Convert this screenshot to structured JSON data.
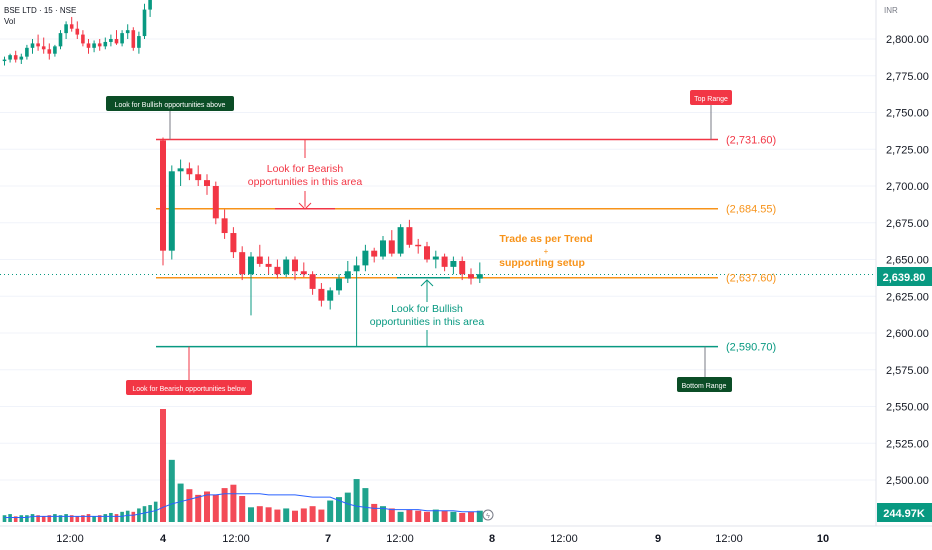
{
  "header": {
    "symbol": "BSE LTD · 15 · NSE",
    "vol_label": "Vol"
  },
  "axis": {
    "currency": "INR"
  },
  "chart_data": {
    "type": "candlestick",
    "y_ticks": [
      2800,
      2775,
      2750,
      2725,
      2700,
      2675,
      2650,
      2625,
      2600,
      2575,
      2550,
      2525,
      2500
    ],
    "y_tick_labels": [
      "2,800.00",
      "2,775.00",
      "2,750.00",
      "2,725.00",
      "2,700.00",
      "2,675.00",
      "2,650.00",
      "2,625.00",
      "2,600.00",
      "2,575.00",
      "2,550.00",
      "2,525.00",
      "2,500.00"
    ],
    "x_tick_labels": [
      "12:00",
      "4",
      "12:00",
      "7",
      "12:00",
      "8",
      "12:00",
      "9",
      "12:00",
      "10"
    ],
    "last_price": "2,639.80",
    "last_volume": "244.97K",
    "levels": [
      {
        "value": 2731.6,
        "label": "(2,731.60)",
        "color": "#f23645"
      },
      {
        "value": 2684.55,
        "label": "(2,684.55)",
        "color": "#f7931a"
      },
      {
        "value": 2637.6,
        "label": "(2,637.60)",
        "color": "#f7931a"
      },
      {
        "value": 2590.7,
        "label": "(2,590.70)",
        "color": "#089981"
      }
    ],
    "annotations": {
      "bull_above": "Look for Bullish opportunities above",
      "bear_below": "Look for Bearish opportunities below",
      "top_range": "Top Range",
      "bottom_range": "Bottom Range",
      "bear_area_1": "Look for Bearish",
      "bear_area_2": "opportunities in this area",
      "bull_area_1": "Look for Bullish",
      "bull_area_2": "opportunities in this area",
      "trend_1": "Trade as per Trend",
      "trend_2": "+",
      "trend_3": "supporting setup"
    },
    "candles": [
      [
        2785,
        2788,
        2782,
        2786
      ],
      [
        2786,
        2790,
        2784,
        2789
      ],
      [
        2789,
        2792,
        2784,
        2786
      ],
      [
        2786,
        2790,
        2783,
        2788
      ],
      [
        2788,
        2796,
        2786,
        2794
      ],
      [
        2794,
        2800,
        2790,
        2797
      ],
      [
        2797,
        2803,
        2792,
        2795
      ],
      [
        2795,
        2801,
        2790,
        2793
      ],
      [
        2793,
        2797,
        2786,
        2790
      ],
      [
        2790,
        2796,
        2788,
        2795
      ],
      [
        2795,
        2806,
        2793,
        2804
      ],
      [
        2804,
        2812,
        2800,
        2810
      ],
      [
        2810,
        2815,
        2805,
        2807
      ],
      [
        2807,
        2812,
        2800,
        2803
      ],
      [
        2803,
        2806,
        2795,
        2797
      ],
      [
        2797,
        2800,
        2790,
        2794
      ],
      [
        2794,
        2799,
        2791,
        2797
      ],
      [
        2797,
        2800,
        2792,
        2795
      ],
      [
        2795,
        2801,
        2793,
        2798
      ],
      [
        2798,
        2803,
        2795,
        2800
      ],
      [
        2800,
        2806,
        2796,
        2797
      ],
      [
        2797,
        2806,
        2795,
        2804
      ],
      [
        2804,
        2810,
        2800,
        2806
      ],
      [
        2806,
        2808,
        2792,
        2794
      ],
      [
        2794,
        2805,
        2790,
        2802
      ],
      [
        2802,
        2824,
        2800,
        2820
      ],
      [
        2820,
        2840,
        2815,
        2836
      ],
      [
        2836,
        2852,
        2830,
        2848
      ],
      [
        2731,
        2733,
        2646,
        2656
      ],
      [
        2656,
        2714,
        2650,
        2710
      ],
      [
        2710,
        2718,
        2700,
        2712
      ],
      [
        2712,
        2716,
        2704,
        2708
      ],
      [
        2708,
        2714,
        2700,
        2704
      ],
      [
        2704,
        2708,
        2694,
        2700
      ],
      [
        2700,
        2703,
        2674,
        2678
      ],
      [
        2678,
        2684,
        2664,
        2668
      ],
      [
        2668,
        2672,
        2651,
        2655
      ],
      [
        2655,
        2659,
        2636,
        2640
      ],
      [
        2640,
        2655,
        2612,
        2652
      ],
      [
        2652,
        2660,
        2645,
        2647
      ],
      [
        2647,
        2652,
        2640,
        2645
      ],
      [
        2645,
        2650,
        2637,
        2640
      ],
      [
        2640,
        2652,
        2638,
        2650
      ],
      [
        2650,
        2652,
        2636,
        2642
      ],
      [
        2642,
        2648,
        2638,
        2640
      ],
      [
        2640,
        2642,
        2626,
        2630
      ],
      [
        2630,
        2634,
        2618,
        2622
      ],
      [
        2622,
        2631,
        2616,
        2629
      ],
      [
        2629,
        2640,
        2626,
        2637
      ],
      [
        2637,
        2649,
        2634,
        2642
      ],
      [
        2642,
        2652,
        2591,
        2646
      ],
      [
        2646,
        2660,
        2642,
        2656
      ],
      [
        2656,
        2658,
        2648,
        2652
      ],
      [
        2652,
        2666,
        2650,
        2663
      ],
      [
        2663,
        2670,
        2652,
        2654
      ],
      [
        2654,
        2674,
        2652,
        2672
      ],
      [
        2672,
        2677,
        2658,
        2660
      ],
      [
        2660,
        2664,
        2654,
        2659
      ],
      [
        2659,
        2662,
        2648,
        2650
      ],
      [
        2650,
        2656,
        2644,
        2652
      ],
      [
        2652,
        2654,
        2642,
        2645
      ],
      [
        2645,
        2652,
        2640,
        2649
      ],
      [
        2649,
        2652,
        2636,
        2640
      ],
      [
        2640,
        2644,
        2633,
        2637
      ],
      [
        2637,
        2648,
        2634,
        2640
      ]
    ],
    "volumes": [
      6,
      7,
      5,
      6,
      6,
      7,
      6,
      5,
      6,
      7,
      6,
      7,
      6,
      5,
      6,
      7,
      5,
      6,
      7,
      8,
      7,
      9,
      10,
      9,
      12,
      14,
      15,
      18,
      100,
      55,
      34,
      29,
      24,
      27,
      24,
      30,
      33,
      23,
      13,
      14,
      13,
      11,
      12,
      10,
      12,
      14,
      11,
      19,
      22,
      26,
      38,
      30,
      16,
      14,
      12,
      9,
      11,
      10,
      9,
      11,
      10,
      9,
      8,
      9,
      10
    ],
    "volume_ma": [
      4,
      4,
      4,
      4,
      4,
      5,
      5,
      5,
      5,
      5,
      5,
      5,
      5,
      5,
      5,
      5,
      5,
      5,
      5,
      5,
      5,
      5,
      6,
      6,
      7,
      8,
      9,
      10,
      13,
      16,
      18,
      20,
      22,
      24,
      24,
      25,
      25,
      25,
      25,
      25,
      24,
      24,
      24,
      24,
      23,
      22,
      22,
      22,
      19,
      16,
      14,
      13,
      12,
      12,
      11,
      11,
      11,
      11,
      10,
      10,
      10,
      10,
      9,
      9,
      9
    ]
  }
}
